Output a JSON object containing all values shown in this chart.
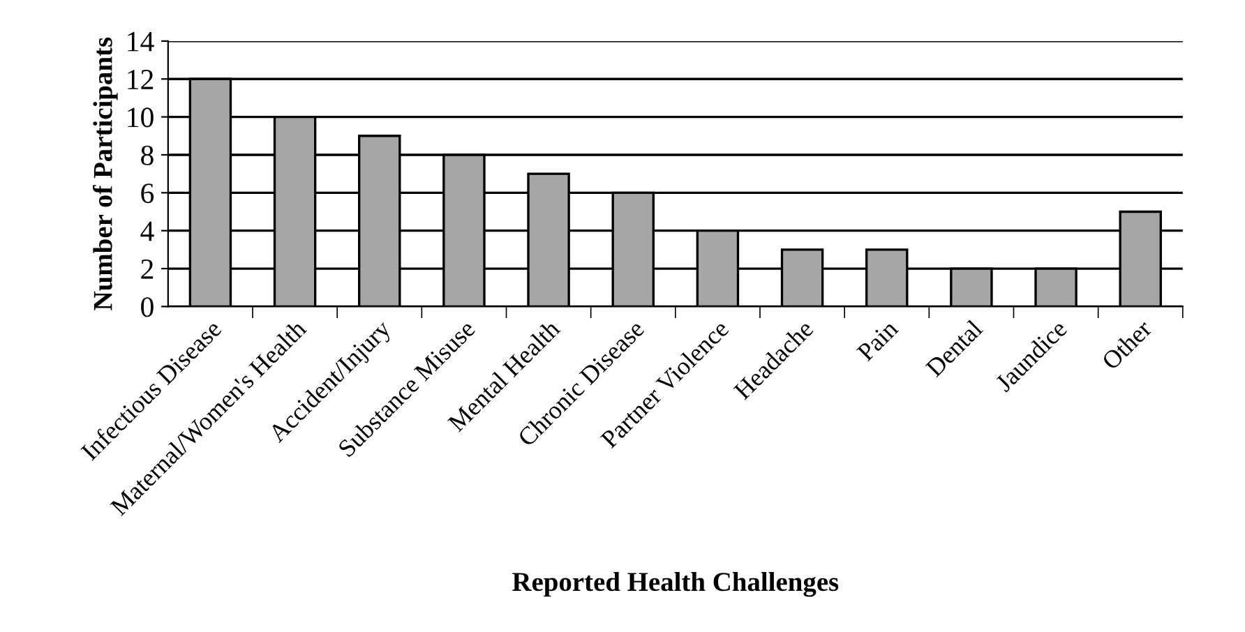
{
  "chart_data": {
    "type": "bar",
    "xlabel": "Reported Health Challenges",
    "ylabel": "Number of Participants",
    "categories": [
      "Infectious Disease",
      "Maternal/Women's Health",
      "Accident/Injury",
      "Substance Misuse",
      "Mental Health",
      "Chronic Disease",
      "Partner Violence",
      "Headache",
      "Pain",
      "Dental",
      "Jaundice",
      "Other"
    ],
    "values": [
      12,
      10,
      9,
      8,
      7,
      6,
      4,
      3,
      3,
      2,
      2,
      5
    ],
    "color": "#a6a6a6",
    "ylim": [
      0,
      14
    ],
    "yticks": [
      0,
      2,
      4,
      6,
      8,
      10,
      12,
      14
    ],
    "grid": "y"
  }
}
